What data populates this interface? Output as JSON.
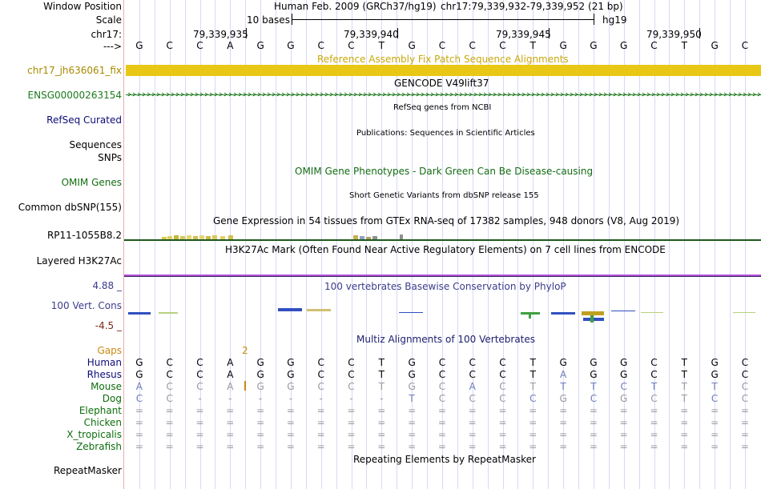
{
  "header": {
    "labels": {
      "window_position": "Window Position",
      "scale": "Scale",
      "chr": "chr17:",
      "arrow": "--->"
    },
    "assembly": "Human Feb. 2009 (GRCh37/hg19)",
    "position": "chr17:79,339,932-79,339,952 (21 bp)",
    "scale_text": "10 bases",
    "scale_db": "hg19",
    "coords": [
      "79,339,935",
      "79,339,940",
      "79,339,945",
      "79,339,950"
    ]
  },
  "sequence": [
    "G",
    "C",
    "C",
    "A",
    "G",
    "G",
    "C",
    "C",
    "T",
    "G",
    "C",
    "C",
    "C",
    "T",
    "G",
    "G",
    "G",
    "C",
    "T",
    "G",
    "C"
  ],
  "tracks": {
    "fix_patch": {
      "label": "chr17_jh636061_fix",
      "title": "Reference Assembly Fix Patch Sequence Alignments"
    },
    "gencode": {
      "label": "ENSG00000263154",
      "title": "GENCODE V49lift37"
    },
    "refseq": {
      "label": "RefSeq Curated",
      "title": "RefSeq genes from NCBI"
    },
    "publications": {
      "label": "Sequences",
      "title": "Publications: Sequences in Scientific Articles"
    },
    "snps": {
      "label": "SNPs"
    },
    "omim": {
      "label": "OMIM Genes",
      "title": "OMIM Gene Phenotypes - Dark Green Can Be Disease-causing"
    },
    "dbsnp": {
      "label": "Common dbSNP(155)",
      "title": "Short Genetic Variants from dbSNP release 155"
    },
    "gtex": {
      "label": "RP11-1055B8.2",
      "title": "Gene Expression in 54 tissues from GTEx RNA-seq of 17382 samples, 948 donors (V8, Aug 2019)"
    },
    "h3k27ac": {
      "label": "Layered H3K27Ac",
      "title": "H3K27Ac Mark (Often Found Near Active Regulatory Elements) on 7 cell lines from ENCODE"
    },
    "phylop": {
      "label": "100 Vert. Cons",
      "max": "4.88 _",
      "min": "-4.5 _",
      "title": "100 vertebrates Basewise Conservation by PhyloP"
    },
    "multiz": {
      "title": "Multiz Alignments of 100 Vertebrates",
      "gaps_label": "Gaps",
      "gap_marker": "2"
    },
    "repeatmasker": {
      "label": "RepeatMasker",
      "title": "Repeating Elements by RepeatMasker"
    }
  },
  "species": [
    {
      "name": "Human",
      "bases": [
        "G",
        "C",
        "C",
        "A",
        "G",
        "G",
        "C",
        "C",
        "T",
        "G",
        "C",
        "C",
        "C",
        "T",
        "G",
        "G",
        "G",
        "C",
        "T",
        "G",
        "C"
      ]
    },
    {
      "name": "Rhesus",
      "bases": [
        "G",
        "C",
        "C",
        "A",
        "G",
        "G",
        "C",
        "C",
        "T",
        "G",
        "C",
        "C",
        "C",
        "T",
        "A",
        "G",
        "G",
        "C",
        "T",
        "G",
        "C"
      ]
    },
    {
      "name": "Mouse",
      "bases": [
        "A",
        "C",
        "C",
        "A",
        "G",
        "G",
        "C",
        "C",
        "T",
        "G",
        "C",
        "A",
        "C",
        "T",
        "T",
        "T",
        "C",
        "T",
        "T",
        "T",
        "C"
      ]
    },
    {
      "name": "Dog",
      "bases": [
        "C",
        "C",
        "-",
        "-",
        "-",
        "-",
        "-",
        "-",
        "-",
        "T",
        "C",
        "C",
        "C",
        "C",
        "G",
        "C",
        "G",
        "C",
        "T",
        "C",
        "C"
      ]
    },
    {
      "name": "Elephant",
      "bases": [
        "=",
        "=",
        "=",
        "=",
        "=",
        "=",
        "=",
        "=",
        "=",
        "=",
        "=",
        "=",
        "=",
        "=",
        "=",
        "=",
        "=",
        "=",
        "=",
        "=",
        "="
      ]
    },
    {
      "name": "Chicken",
      "bases": [
        "=",
        "=",
        "=",
        "=",
        "=",
        "=",
        "=",
        "=",
        "=",
        "=",
        "=",
        "=",
        "=",
        "=",
        "=",
        "=",
        "=",
        "=",
        "=",
        "=",
        "="
      ]
    },
    {
      "name": "X_tropicalis",
      "bases": [
        "=",
        "=",
        "=",
        "=",
        "=",
        "=",
        "=",
        "=",
        "=",
        "=",
        "=",
        "=",
        "=",
        "=",
        "=",
        "=",
        "=",
        "=",
        "=",
        "=",
        "="
      ]
    },
    {
      "name": "Zebrafish",
      "bases": [
        "=",
        "=",
        "=",
        "=",
        "=",
        "=",
        "=",
        "=",
        "=",
        "=",
        "=",
        "=",
        "=",
        "=",
        "=",
        "=",
        "=",
        "=",
        "=",
        "=",
        "="
      ]
    }
  ],
  "colors": {
    "fix_patch": "#e8c815",
    "gencode": "#1c7a1c",
    "refseq_label": "#0c0c78",
    "omim": "#136c13",
    "phylop": "#3c3c8c",
    "phylop_min": "#7a2a1a",
    "gaps": "#c98a10",
    "species": "#0d6e0d",
    "h3k27ac_line": "#b04fd8"
  }
}
